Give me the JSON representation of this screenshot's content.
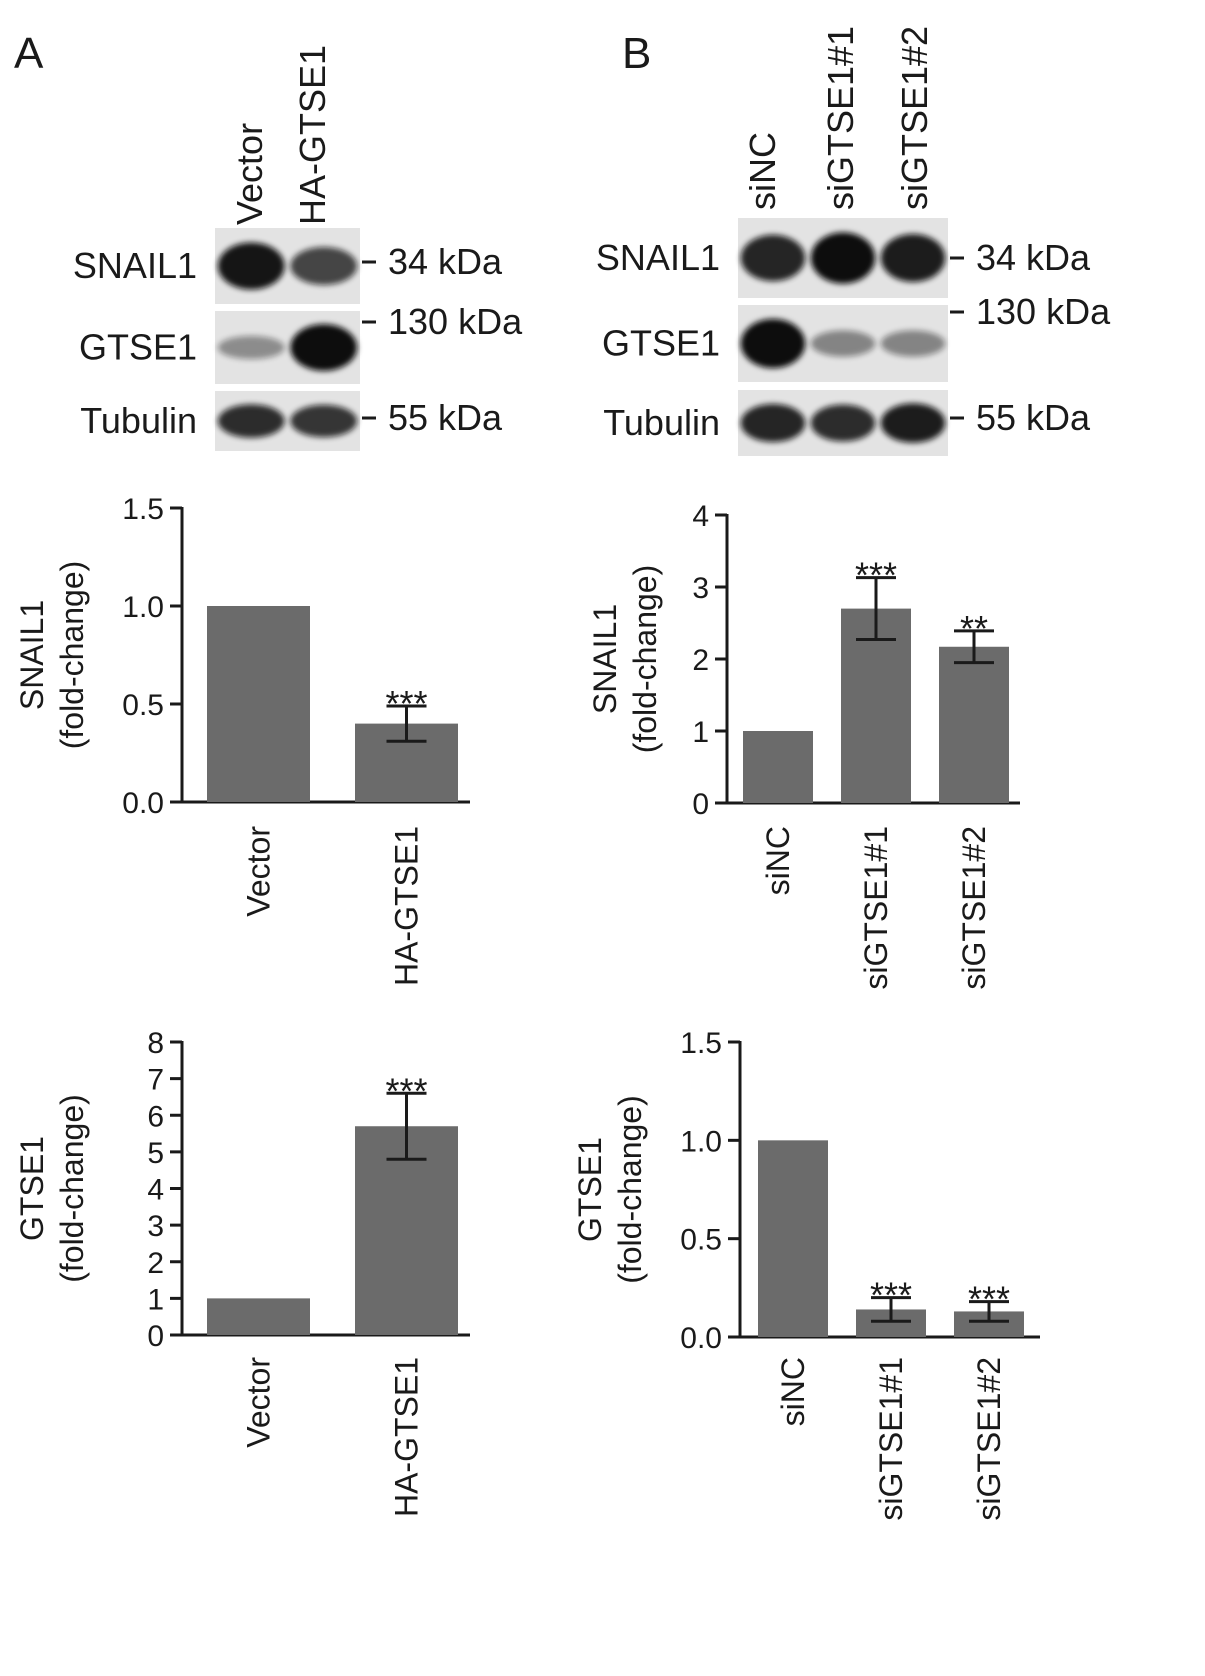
{
  "panels": [
    {
      "letter": "A",
      "lanes": [
        "Vector",
        "HA-GTSE1"
      ],
      "blots": [
        {
          "protein": "SNAIL1",
          "marker": "34 kDa",
          "bands": [
            0.95,
            0.65
          ]
        },
        {
          "protein": "GTSE1",
          "marker": "130 kDa",
          "bands": [
            0.2,
            1.0
          ]
        },
        {
          "protein": "Tubulin",
          "marker": "55 kDa",
          "bands": [
            0.8,
            0.75
          ]
        }
      ]
    },
    {
      "letter": "B",
      "lanes": [
        "siNC",
        "siGTSE1#1",
        "siGTSE1#2"
      ],
      "blots": [
        {
          "protein": "SNAIL1",
          "marker": "34 kDa",
          "bands": [
            0.85,
            1.0,
            0.9
          ]
        },
        {
          "protein": "GTSE1",
          "marker": "130 kDa",
          "bands": [
            1.0,
            0.25,
            0.25
          ]
        },
        {
          "protein": "Tubulin",
          "marker": "55 kDa",
          "bands": [
            0.85,
            0.8,
            0.9
          ]
        }
      ]
    }
  ],
  "chart_data": [
    {
      "type": "bar",
      "panel": "A",
      "ylabel": [
        "SNAIL1",
        "(fold-change)"
      ],
      "categories": [
        "Vector",
        "HA-GTSE1"
      ],
      "values": [
        1.0,
        0.4
      ],
      "errors": [
        0,
        0.09
      ],
      "significance": [
        "",
        "***"
      ],
      "ylim": [
        0,
        1.5
      ],
      "yticks": [
        "0.0",
        "0.5",
        "1.0",
        "1.5"
      ],
      "color": "#6b6b6b"
    },
    {
      "type": "bar",
      "panel": "B",
      "ylabel": [
        "SNAIL1",
        "(fold-change)"
      ],
      "categories": [
        "siNC",
        "siGTSE1#1",
        "siGTSE1#2"
      ],
      "values": [
        1.0,
        2.7,
        2.17
      ],
      "errors": [
        0,
        0.43,
        0.22
      ],
      "significance": [
        "",
        "***",
        "**"
      ],
      "ylim": [
        0,
        4
      ],
      "yticks": [
        "0",
        "1",
        "2",
        "3",
        "4"
      ],
      "color": "#6b6b6b"
    },
    {
      "type": "bar",
      "panel": "A",
      "ylabel": [
        "GTSE1",
        "(fold-change)"
      ],
      "categories": [
        "Vector",
        "HA-GTSE1"
      ],
      "values": [
        1.0,
        5.7
      ],
      "errors": [
        0,
        0.9
      ],
      "significance": [
        "",
        "***"
      ],
      "ylim": [
        0,
        8
      ],
      "yticks": [
        "0",
        "1",
        "2",
        "3",
        "4",
        "5",
        "6",
        "7",
        "8"
      ],
      "color": "#6b6b6b"
    },
    {
      "type": "bar",
      "panel": "B",
      "ylabel": [
        "GTSE1",
        "(fold-change)"
      ],
      "categories": [
        "siNC",
        "siGTSE1#1",
        "siGTSE1#2"
      ],
      "values": [
        1.0,
        0.14,
        0.13
      ],
      "errors": [
        0,
        0.06,
        0.05
      ],
      "significance": [
        "",
        "***",
        "***"
      ],
      "ylim": [
        0,
        1.5
      ],
      "yticks": [
        "0.0",
        "0.5",
        "1.0",
        "1.5"
      ],
      "color": "#6b6b6b"
    }
  ]
}
